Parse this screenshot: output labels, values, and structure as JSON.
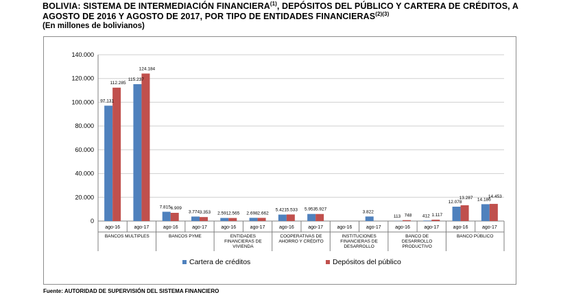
{
  "header": {
    "title_line1": "BOLIVIA: SISTEMA DE INTERMEDIACIÓN FINANCIERA",
    "title_sup1": "(1)",
    "title_line1b": ", DEPÓSITOS DEL PÚBLICO Y CARTERA DE CRÉDITOS, A",
    "title_line2": "AGOSTO DE 2016 Y AGOSTO DE 2017, POR TIPO DE ENTIDADES FINANCIERAS",
    "title_sup2": "(2)(3)",
    "subtitle": "(En millones de bolivianos)"
  },
  "footer": {
    "source": "Fuente: AUTORIDAD DE SUPERVISIÓN DEL SISTEMA FINANCIERO"
  },
  "colors": {
    "cartera": "#4f81bd",
    "depositos": "#c0504d",
    "grid": "#cfcfcf",
    "axis": "#7f7f7f"
  },
  "chart_data": {
    "type": "bar",
    "title": "BOLIVIA: SISTEMA DE INTERMEDIACIÓN FINANCIERA, DEPÓSITOS DEL PÚBLICO Y CARTERA DE CRÉDITOS, A AGOSTO DE 2016 Y AGOSTO DE 2017, POR TIPO DE ENTIDADES FINANCIERAS",
    "ylabel": "En millones de bolivianos",
    "ylim": [
      0,
      140000
    ],
    "yticks": [
      0,
      20000,
      40000,
      60000,
      80000,
      100000,
      120000,
      140000
    ],
    "ytick_labels": [
      "0",
      "20.000",
      "40.000",
      "60.000",
      "80.000",
      "100.000",
      "120.000",
      "140.000"
    ],
    "grid": true,
    "legend_position": "bottom",
    "groups": [
      {
        "name": "BANCOS MULTIPLES",
        "name_lines": [
          "BANCOS MULTIPLES"
        ],
        "periods": [
          "ago-16",
          "ago-17"
        ]
      },
      {
        "name": "BANCOS PYME",
        "name_lines": [
          "BANCOS PYME"
        ],
        "periods": [
          "ago-16",
          "ago-17"
        ]
      },
      {
        "name": "ENTIDADES FINANCIERAS DE VIVIENDA",
        "name_lines": [
          "ENTIDADES",
          "FINANCIERAS DE",
          "VIVIENDA"
        ],
        "periods": [
          "ago-16",
          "ago-17"
        ]
      },
      {
        "name": "COOPERATIVAS DE AHORRO Y CRÉDITO",
        "name_lines": [
          "COOPERATIVAS DE",
          "AHORRO Y CRÉDITO"
        ],
        "periods": [
          "ago-16",
          "ago-17"
        ]
      },
      {
        "name": "INSTITUCIONES FINANCIERAS DE DESARROLLO",
        "name_lines": [
          "INSTITUCIONES",
          "FINANCIERAS DE",
          "DESARROLLO"
        ],
        "periods": [
          "ago-16",
          "ago-17"
        ]
      },
      {
        "name": "BANCO DE DESARROLLO PRODUCTIVO",
        "name_lines": [
          "BANCO DE",
          "DESARROLLO",
          "PRODUCTIVO"
        ],
        "periods": [
          "ago-16",
          "ago-17"
        ]
      },
      {
        "name": "BANCO PÚBLICO",
        "name_lines": [
          "BANCO PÚBLICO"
        ],
        "periods": [
          "ago-16",
          "ago-17"
        ]
      }
    ],
    "series": [
      {
        "name": "Cartera de créditos",
        "values": [
          97131,
          115237,
          7815,
          3774,
          2591,
          2698,
          5421,
          5953,
          0,
          3822,
          113,
          412,
          12078,
          14186
        ],
        "labels": [
          "97.131",
          "115.237",
          "7.815",
          "3.774",
          "2.591",
          "2.698",
          "5.421",
          "5.953",
          "",
          "3.822",
          "113",
          "412",
          "12.078",
          "14.186"
        ]
      },
      {
        "name": "Depósitos del público",
        "values": [
          112285,
          124184,
          6909,
          3353,
          2565,
          2662,
          5533,
          5927,
          0,
          0,
          748,
          1117,
          13287,
          14453
        ],
        "labels": [
          "112.285",
          "124.184",
          "6.909",
          "3.353",
          "2.565",
          "2.662",
          "5.533",
          "5.927",
          "",
          "",
          "748",
          "1.117",
          "13.287",
          "14.453"
        ]
      }
    ]
  }
}
